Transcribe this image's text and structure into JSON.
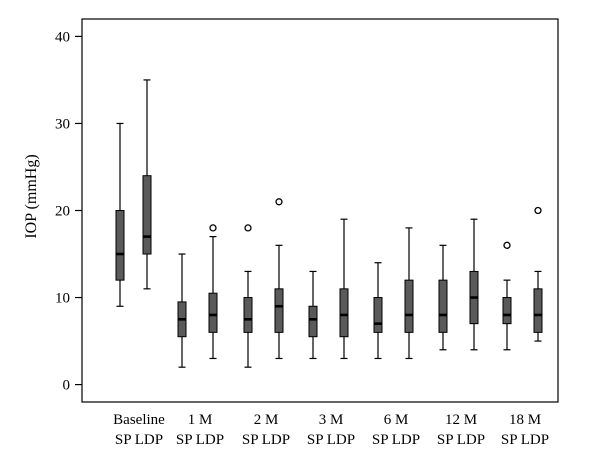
{
  "chart_data": {
    "type": "boxplot",
    "title": "",
    "xlabel": "",
    "ylabel": "IOP (mmHg)",
    "ylim": [
      -2,
      42
    ],
    "yticks": [
      0,
      10,
      20,
      30,
      40
    ],
    "grid": false,
    "legend": "none",
    "groups": [
      {
        "label": "Baseline",
        "sub": [
          "SP",
          "LDP"
        ]
      },
      {
        "label": "1 M",
        "sub": [
          "SP",
          "LDP"
        ]
      },
      {
        "label": "2 M",
        "sub": [
          "SP",
          "LDP"
        ]
      },
      {
        "label": "3 M",
        "sub": [
          "SP",
          "LDP"
        ]
      },
      {
        "label": "6 M",
        "sub": [
          "SP",
          "LDP"
        ]
      },
      {
        "label": "12 M",
        "sub": [
          "SP",
          "LDP"
        ]
      },
      {
        "label": "18 M",
        "sub": [
          "SP",
          "LDP"
        ]
      }
    ],
    "boxes": [
      {
        "group": 0,
        "sub": "SP",
        "whisker_low": 9,
        "q1": 12,
        "median": 15,
        "q3": 20,
        "whisker_high": 30,
        "outliers": []
      },
      {
        "group": 0,
        "sub": "LDP",
        "whisker_low": 11,
        "q1": 15,
        "median": 17,
        "q3": 24,
        "whisker_high": 35,
        "outliers": []
      },
      {
        "group": 1,
        "sub": "SP",
        "whisker_low": 2,
        "q1": 5.5,
        "median": 7.5,
        "q3": 9.5,
        "whisker_high": 15,
        "outliers": []
      },
      {
        "group": 1,
        "sub": "LDP",
        "whisker_low": 3,
        "q1": 6,
        "median": 8,
        "q3": 10.5,
        "whisker_high": 17,
        "outliers": [
          18
        ]
      },
      {
        "group": 2,
        "sub": "SP",
        "whisker_low": 2,
        "q1": 6,
        "median": 7.5,
        "q3": 10,
        "whisker_high": 13,
        "outliers": [
          18
        ]
      },
      {
        "group": 2,
        "sub": "LDP",
        "whisker_low": 3,
        "q1": 6,
        "median": 9,
        "q3": 11,
        "whisker_high": 16,
        "outliers": [
          21
        ]
      },
      {
        "group": 3,
        "sub": "SP",
        "whisker_low": 3,
        "q1": 5.5,
        "median": 7.5,
        "q3": 9,
        "whisker_high": 13,
        "outliers": []
      },
      {
        "group": 3,
        "sub": "LDP",
        "whisker_low": 3,
        "q1": 5.5,
        "median": 8,
        "q3": 11,
        "whisker_high": 19,
        "outliers": []
      },
      {
        "group": 4,
        "sub": "SP",
        "whisker_low": 3,
        "q1": 6,
        "median": 7,
        "q3": 10,
        "whisker_high": 14,
        "outliers": []
      },
      {
        "group": 4,
        "sub": "LDP",
        "whisker_low": 3,
        "q1": 6,
        "median": 8,
        "q3": 12,
        "whisker_high": 18,
        "outliers": []
      },
      {
        "group": 5,
        "sub": "SP",
        "whisker_low": 4,
        "q1": 6,
        "median": 8,
        "q3": 12,
        "whisker_high": 16,
        "outliers": []
      },
      {
        "group": 5,
        "sub": "LDP",
        "whisker_low": 4,
        "q1": 7,
        "median": 10,
        "q3": 13,
        "whisker_high": 19,
        "outliers": []
      },
      {
        "group": 6,
        "sub": "SP",
        "whisker_low": 4,
        "q1": 7,
        "median": 8,
        "q3": 10,
        "whisker_high": 12,
        "outliers": [
          16
        ]
      },
      {
        "group": 6,
        "sub": "LDP",
        "whisker_low": 5,
        "q1": 6,
        "median": 8,
        "q3": 11,
        "whisker_high": 13,
        "outliers": [
          20
        ]
      }
    ],
    "colors": {
      "box_fill": "#5a5a5a",
      "stroke": "#000000"
    }
  }
}
